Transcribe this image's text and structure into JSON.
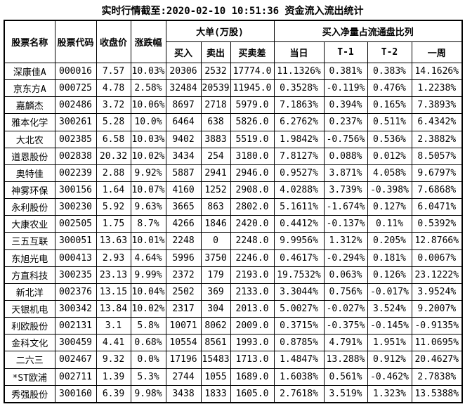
{
  "title": "实时行情截至:2020-02-10 10:51:36 资金流入流出统计",
  "colors": {
    "link_blue": "#1a67a8",
    "text_black": "#000000",
    "border_black": "#000000",
    "background": "#ffffff"
  },
  "table": {
    "column_keys": [
      "name",
      "code",
      "close",
      "change",
      "buy",
      "sell",
      "diff",
      "today",
      "t1",
      "t2",
      "week"
    ],
    "headers": {
      "name": "股票名称",
      "code": "股票代码",
      "close": "收盘价",
      "change": "涨跌幅",
      "big_order_group": "大单(万股)",
      "buy": "买入",
      "sell": "卖出",
      "diff": "买卖差",
      "net_buy_ratio_group": "买入净量占流通盘比列",
      "today": "当日",
      "t_minus_1": "T-1",
      "t_minus_2": "T-2",
      "week": "一周"
    },
    "rows": [
      [
        "深康佳A",
        "000016",
        "7.57",
        "10.03%",
        "20306",
        "2532",
        "17774.0",
        "11.1326%",
        "0.381%",
        "0.383%",
        "14.1626%"
      ],
      [
        "京东方A",
        "000725",
        "4.78",
        "2.58%",
        "32484",
        "20539",
        "11945.0",
        "0.3528%",
        "-0.119%",
        "0.476%",
        "1.2238%"
      ],
      [
        "嘉麟杰",
        "002486",
        "3.72",
        "10.06%",
        "8697",
        "2718",
        "5979.0",
        "7.1863%",
        "0.394%",
        "0.165%",
        "7.3893%"
      ],
      [
        "雅本化学",
        "300261",
        "5.28",
        "10.0%",
        "6464",
        "638",
        "5826.0",
        "6.2762%",
        "0.237%",
        "0.511%",
        "6.4342%"
      ],
      [
        "大北农",
        "002385",
        "6.58",
        "10.03%",
        "9402",
        "3883",
        "5519.0",
        "1.9842%",
        "-0.756%",
        "0.536%",
        "2.3882%"
      ],
      [
        "道恩股份",
        "002838",
        "20.32",
        "10.02%",
        "3434",
        "254",
        "3180.0",
        "7.8127%",
        "0.088%",
        "0.012%",
        "8.5057%"
      ],
      [
        "奥特佳",
        "002239",
        "2.88",
        "9.92%",
        "5887",
        "2941",
        "2946.0",
        "0.9527%",
        "3.871%",
        "4.058%",
        "9.6797%"
      ],
      [
        "神雾环保",
        "300156",
        "1.64",
        "10.07%",
        "4160",
        "1252",
        "2908.0",
        "4.0288%",
        "3.739%",
        "-0.398%",
        "7.6868%"
      ],
      [
        "永利股份",
        "300230",
        "5.92",
        "9.63%",
        "3665",
        "863",
        "2802.0",
        "5.1611%",
        "-1.674%",
        "0.127%",
        "6.0471%"
      ],
      [
        "大康农业",
        "002505",
        "1.75",
        "8.7%",
        "4266",
        "1846",
        "2420.0",
        "0.4412%",
        "-0.137%",
        "0.11%",
        "0.5392%"
      ],
      [
        "三五互联",
        "300051",
        "13.63",
        "10.01%",
        "2248",
        "0",
        "2248.0",
        "9.9956%",
        "1.312%",
        "0.205%",
        "12.8766%"
      ],
      [
        "东旭光电",
        "000413",
        "2.93",
        "4.64%",
        "5996",
        "3750",
        "2246.0",
        "0.4617%",
        "-0.294%",
        "0.181%",
        "0.0067%"
      ],
      [
        "方直科技",
        "300235",
        "23.13",
        "9.99%",
        "2372",
        "179",
        "2193.0",
        "19.7532%",
        "0.063%",
        "0.126%",
        "23.1222%"
      ],
      [
        "新北洋",
        "002376",
        "13.15",
        "10.04%",
        "2502",
        "369",
        "2133.0",
        "3.3044%",
        "0.756%",
        "-0.017%",
        "3.9524%"
      ],
      [
        "天银机电",
        "300342",
        "13.84",
        "10.02%",
        "2317",
        "304",
        "2013.0",
        "5.0027%",
        "-0.027%",
        "3.524%",
        "9.2007%"
      ],
      [
        "利欧股份",
        "002131",
        "3.1",
        "5.8%",
        "10071",
        "8062",
        "2009.0",
        "0.3715%",
        "-0.375%",
        "-0.145%",
        "-0.9135%"
      ],
      [
        "金科文化",
        "300459",
        "4.41",
        "0.68%",
        "10554",
        "8561",
        "1993.0",
        "0.8785%",
        "4.791%",
        "1.951%",
        "11.0695%"
      ],
      [
        "二六三",
        "002467",
        "9.32",
        "0.0%",
        "17196",
        "15483",
        "1713.0",
        "1.4847%",
        "13.288%",
        "0.912%",
        "20.4627%"
      ],
      [
        "*ST欧浦",
        "002711",
        "1.39",
        "5.3%",
        "2744",
        "1055",
        "1689.0",
        "1.6038%",
        "0.561%",
        "-0.462%",
        "2.7838%"
      ],
      [
        "秀强股份",
        "300160",
        "6.39",
        "9.98%",
        "3438",
        "1833",
        "1605.0",
        "2.7618%",
        "3.519%",
        "1.323%",
        "13.5388%"
      ]
    ]
  }
}
